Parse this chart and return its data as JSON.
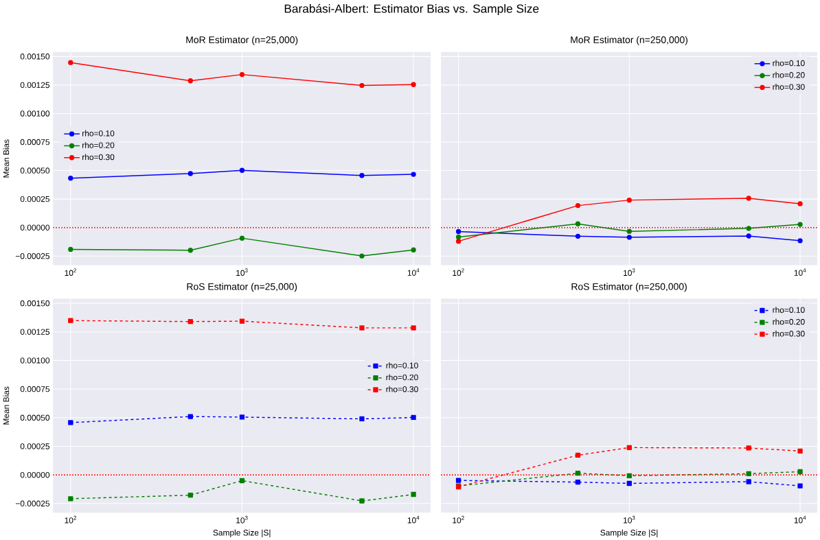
{
  "chart_data": [
    {
      "type": "line",
      "title": "MoR Estimator (n=25,000)",
      "ylabel": "Mean Bias",
      "annotations": [
        "Barabási-Albert: Estimator Bias vs. Sample Size"
      ],
      "log": "x",
      "grid": true,
      "legend": "center left",
      "marker": "circle",
      "line_style": "solid",
      "x": [
        100,
        500,
        1000,
        5000,
        10000
      ],
      "xlim": [
        79,
        12600
      ],
      "ylim": [
        -0.00033,
        0.00154
      ],
      "xticks": [
        {
          "value": 100,
          "label": "10$^{2}$"
        },
        {
          "value": 1000,
          "label": "10$^{3}$"
        },
        {
          "value": 10000,
          "label": "10$^{4}$"
        }
      ],
      "yticks": [
        {
          "value": -0.00025,
          "label": "−0.00025"
        },
        {
          "value": 0,
          "label": "0.00000"
        },
        {
          "value": 0.00025,
          "label": "0.00025"
        },
        {
          "value": 0.0005,
          "label": "0.00050"
        },
        {
          "value": 0.00075,
          "label": "0.00075"
        },
        {
          "value": 0.001,
          "label": "0.00100"
        },
        {
          "value": 0.00125,
          "label": "0.00125"
        },
        {
          "value": 0.0015,
          "label": "0.00150"
        }
      ],
      "ref_lines": [
        {
          "axis": "y",
          "value": 0,
          "color": "#ff0000",
          "line_style": "dotted"
        }
      ],
      "series": [
        {
          "name": "rho=0.10",
          "color": "#0000ff",
          "values": [
            0.000433,
            0.000474,
            0.000502,
            0.000457,
            0.000467
          ]
        },
        {
          "name": "rho=0.20",
          "color": "#008000",
          "values": [
            -0.000191,
            -0.000199,
            -9.3e-05,
            -0.000249,
            -0.000196
          ]
        },
        {
          "name": "rho=0.30",
          "color": "#ff0000",
          "values": [
            0.001447,
            0.001287,
            0.001342,
            0.001246,
            0.001254
          ]
        }
      ]
    },
    {
      "type": "line",
      "title": "MoR Estimator (n=250,000)",
      "log": "x",
      "grid": true,
      "legend": "top right",
      "marker": "circle",
      "line_style": "solid",
      "tick_labels": "x",
      "x": [
        100,
        500,
        1000,
        5000,
        10000
      ],
      "xlim": [
        79,
        12600
      ],
      "ylim": [
        -0.00033,
        0.00154
      ],
      "xticks": [
        {
          "value": 100,
          "label": "10$^{2}$"
        },
        {
          "value": 1000,
          "label": "10$^{3}$"
        },
        {
          "value": 10000,
          "label": "10$^{4}$"
        }
      ],
      "yticks": [
        {
          "value": -0.00025,
          "label": null
        },
        {
          "value": 0,
          "label": null
        },
        {
          "value": 0.00025,
          "label": null
        },
        {
          "value": 0.0005,
          "label": null
        },
        {
          "value": 0.00075,
          "label": null
        },
        {
          "value": 0.001,
          "label": null
        },
        {
          "value": 0.00125,
          "label": null
        },
        {
          "value": 0.0015,
          "label": null
        }
      ],
      "ref_lines": [
        {
          "axis": "y",
          "value": 0,
          "color": "#ff0000",
          "line_style": "dotted"
        }
      ],
      "series": [
        {
          "name": "rho=0.10",
          "color": "#0000ff",
          "values": [
            -3.5e-05,
            -7.6e-05,
            -8.5e-05,
            -7.4e-05,
            -0.000115
          ]
        },
        {
          "name": "rho=0.20",
          "color": "#008000",
          "values": [
            -8.3e-05,
            3.3e-05,
            -3.3e-05,
            -7e-06,
            2.8e-05
          ]
        },
        {
          "name": "rho=0.30",
          "color": "#ff0000",
          "values": [
            -0.00012,
            0.000193,
            0.000241,
            0.000257,
            0.000209
          ]
        }
      ]
    },
    {
      "type": "line",
      "title": "RoS Estimator (n=25,000)",
      "xlabel": "Sample Size |S|",
      "ylabel": "Mean Bias",
      "log": "x",
      "grid": true,
      "legend": "center right",
      "marker": "square",
      "line_style": "dashed",
      "x": [
        100,
        500,
        1000,
        5000,
        10000
      ],
      "xlim": [
        79,
        12600
      ],
      "ylim": [
        -0.00033,
        0.00154
      ],
      "xticks": [
        {
          "value": 100,
          "label": "10$^{2}$"
        },
        {
          "value": 1000,
          "label": "10$^{3}$"
        },
        {
          "value": 10000,
          "label": "10$^{4}$"
        }
      ],
      "yticks": [
        {
          "value": -0.00025,
          "label": "−0.00025"
        },
        {
          "value": 0,
          "label": "0.00000"
        },
        {
          "value": 0.00025,
          "label": "0.00025"
        },
        {
          "value": 0.0005,
          "label": "0.00050"
        },
        {
          "value": 0.00075,
          "label": "0.00075"
        },
        {
          "value": 0.001,
          "label": "0.00100"
        },
        {
          "value": 0.00125,
          "label": "0.00125"
        },
        {
          "value": 0.0015,
          "label": "0.00150"
        }
      ],
      "ref_lines": [
        {
          "axis": "y",
          "value": 0,
          "color": "#ff0000",
          "line_style": "dotted"
        }
      ],
      "series": [
        {
          "name": "rho=0.10",
          "color": "#0000ff",
          "values": [
            0.000457,
            0.00051,
            0.000505,
            0.00049,
            0.000502
          ]
        },
        {
          "name": "rho=0.20",
          "color": "#008000",
          "values": [
            -0.000208,
            -0.000177,
            -5e-05,
            -0.000227,
            -0.00017
          ]
        },
        {
          "name": "rho=0.30",
          "color": "#ff0000",
          "values": [
            0.001349,
            0.00134,
            0.001344,
            0.001285,
            0.001285
          ]
        }
      ]
    },
    {
      "type": "line",
      "title": "RoS Estimator (n=250,000)",
      "xlabel": "Sample Size |S|",
      "log": "x",
      "grid": true,
      "legend": "top right",
      "marker": "square",
      "line_style": "dashed",
      "tick_labels": "x",
      "x": [
        100,
        500,
        1000,
        5000,
        10000
      ],
      "xlim": [
        79,
        12600
      ],
      "ylim": [
        -0.00033,
        0.00154
      ],
      "xticks": [
        {
          "value": 100,
          "label": "10$^{2}$"
        },
        {
          "value": 1000,
          "label": "10$^{3}$"
        },
        {
          "value": 10000,
          "label": "10$^{4}$"
        }
      ],
      "yticks": [
        {
          "value": -0.00025,
          "label": null
        },
        {
          "value": 0,
          "label": null
        },
        {
          "value": 0.00025,
          "label": null
        },
        {
          "value": 0.0005,
          "label": null
        },
        {
          "value": 0.00075,
          "label": null
        },
        {
          "value": 0.001,
          "label": null
        },
        {
          "value": 0.00125,
          "label": null
        },
        {
          "value": 0.0015,
          "label": null
        }
      ],
      "ref_lines": [
        {
          "axis": "y",
          "value": 0,
          "color": "#ff0000",
          "line_style": "dotted"
        }
      ],
      "series": [
        {
          "name": "rho=0.10",
          "color": "#0000ff",
          "values": [
            -4.8e-05,
            -6.3e-05,
            -7.4e-05,
            -5.9e-05,
            -9.6e-05
          ]
        },
        {
          "name": "rho=0.20",
          "color": "#008000",
          "values": [
            -9.6e-05,
            1.5e-05,
            -7e-06,
            1.1e-05,
            2.8e-05
          ]
        },
        {
          "name": "rho=0.30",
          "color": "#ff0000",
          "values": [
            -0.000104,
            0.000172,
            0.000239,
            0.000235,
            0.000209
          ]
        }
      ]
    }
  ]
}
